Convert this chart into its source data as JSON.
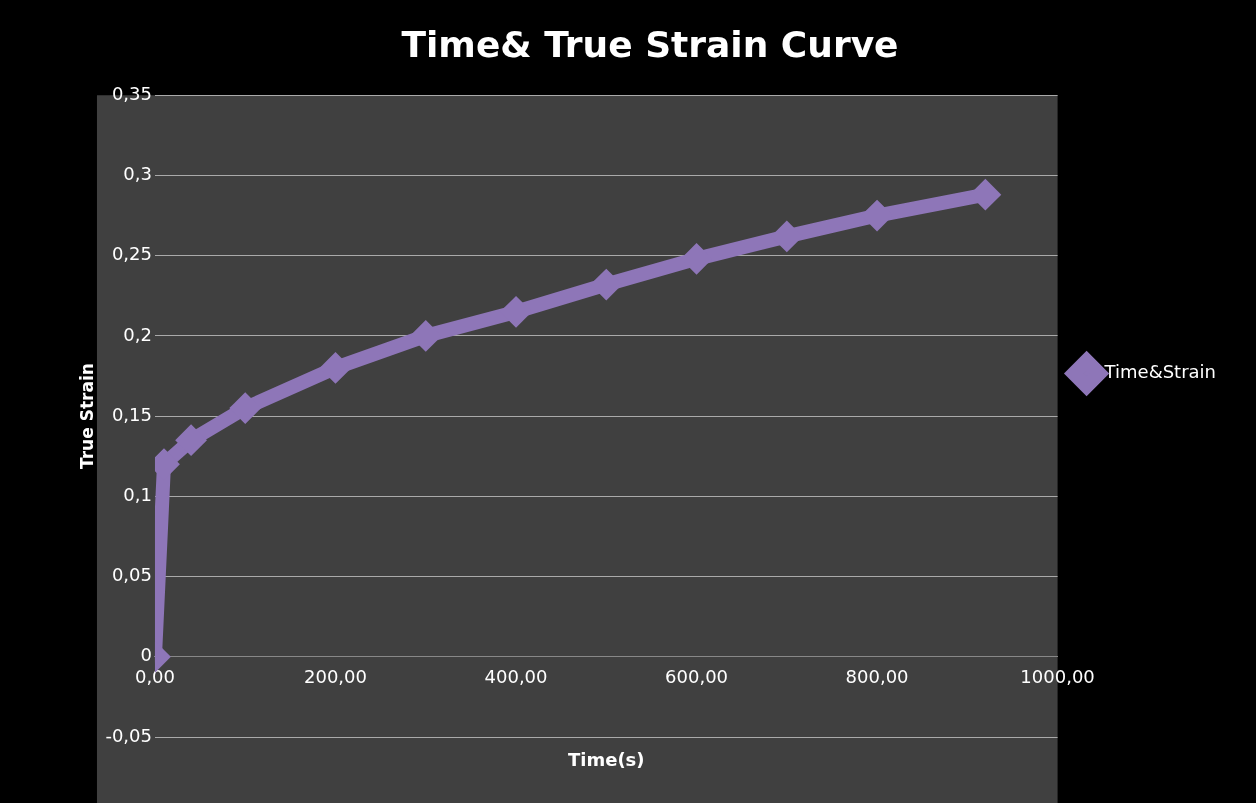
{
  "chart_data": {
    "type": "line",
    "title": "Time& True Strain Curve",
    "xlabel": "Time(s)",
    "ylabel": "True Strain",
    "x": [
      0,
      10,
      40,
      100,
      200,
      300,
      400,
      500,
      600,
      700,
      800,
      920
    ],
    "series": [
      {
        "name": "Time&Strain",
        "color": "#8e76b8",
        "values": [
          0,
          0.12,
          0.135,
          0.155,
          0.18,
          0.2,
          0.215,
          0.232,
          0.248,
          0.262,
          0.275,
          0.288
        ]
      }
    ],
    "xlim": [
      0,
      1000
    ],
    "xticks": [
      {
        "value": 0,
        "label": "0,00"
      },
      {
        "value": 200,
        "label": "200,00"
      },
      {
        "value": 400,
        "label": "400,00"
      },
      {
        "value": 600,
        "label": "600,00"
      },
      {
        "value": 800,
        "label": "800,00"
      },
      {
        "value": 1000,
        "label": "1000,00"
      }
    ],
    "ylim": [
      -0.05,
      0.35
    ],
    "yticks": [
      {
        "value": -0.05,
        "label": "-0,05"
      },
      0,
      {
        "value": 0.05,
        "label": "0,05"
      },
      {
        "value": 0.1,
        "label": "0,1"
      },
      {
        "value": 0.15,
        "label": "0,15"
      },
      {
        "value": 0.2,
        "label": "0,2"
      },
      {
        "value": 0.25,
        "label": "0,25"
      },
      {
        "value": 0.3,
        "label": "0,3"
      },
      {
        "value": 0.35,
        "label": "0,35"
      }
    ],
    "grid": "y",
    "legend": "right",
    "marker": "diamond",
    "line_style": "solid"
  }
}
